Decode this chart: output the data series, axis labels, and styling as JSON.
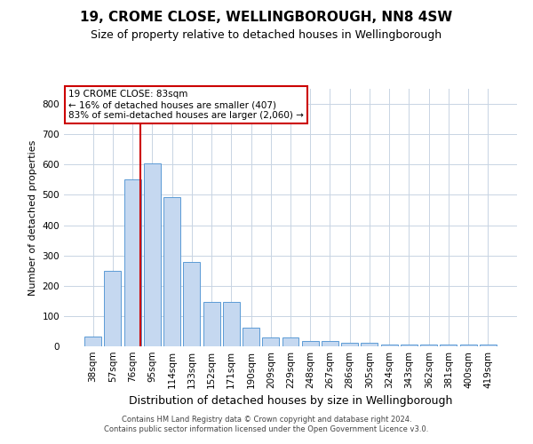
{
  "title": "19, CROME CLOSE, WELLINGBOROUGH, NN8 4SW",
  "subtitle": "Size of property relative to detached houses in Wellingborough",
  "xlabel": "Distribution of detached houses by size in Wellingborough",
  "ylabel": "Number of detached properties",
  "categories": [
    "38sqm",
    "57sqm",
    "76sqm",
    "95sqm",
    "114sqm",
    "133sqm",
    "152sqm",
    "171sqm",
    "190sqm",
    "209sqm",
    "229sqm",
    "248sqm",
    "267sqm",
    "286sqm",
    "305sqm",
    "324sqm",
    "343sqm",
    "362sqm",
    "381sqm",
    "400sqm",
    "419sqm"
  ],
  "values": [
    32,
    248,
    550,
    605,
    493,
    278,
    148,
    148,
    62,
    30,
    30,
    17,
    17,
    12,
    12,
    5,
    5,
    5,
    5,
    7,
    5
  ],
  "bar_color": "#c5d8f0",
  "bar_edge_color": "#5b9bd5",
  "vline_x": 2.42,
  "vline_color": "#cc0000",
  "annotation_text": "19 CROME CLOSE: 83sqm\n← 16% of detached houses are smaller (407)\n83% of semi-detached houses are larger (2,060) →",
  "annotation_box_color": "#ffffff",
  "annotation_box_edge_color": "#cc0000",
  "footer_line1": "Contains HM Land Registry data © Crown copyright and database right 2024.",
  "footer_line2": "Contains public sector information licensed under the Open Government Licence v3.0.",
  "bg_color": "#ffffff",
  "grid_color": "#c8d4e3",
  "ylim_max": 850,
  "yticks": [
    0,
    100,
    200,
    300,
    400,
    500,
    600,
    700,
    800
  ],
  "title_fontsize": 11,
  "subtitle_fontsize": 9,
  "tick_fontsize": 7.5,
  "ylabel_fontsize": 8,
  "xlabel_fontsize": 9,
  "annotation_fontsize": 7.5,
  "footer_fontsize": 6
}
